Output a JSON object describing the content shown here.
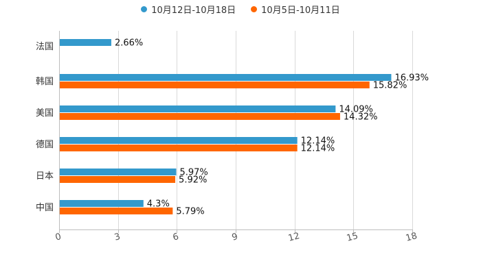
{
  "chart_data": {
    "type": "bar",
    "orientation": "horizontal",
    "categories": [
      "法国",
      "韩国",
      "美国",
      "德国",
      "日本",
      "中国"
    ],
    "series": [
      {
        "name": "10月12日-10月18日",
        "color": "#3399cc",
        "values": [
          2.66,
          16.93,
          14.09,
          12.14,
          5.97,
          4.3
        ],
        "labels": [
          "2.66%",
          "16.93%",
          "14.09%",
          "12.14%",
          "5.97%",
          "4.3%"
        ]
      },
      {
        "name": "10月5日-10月11日",
        "color": "#ff6600",
        "values": [
          null,
          15.82,
          14.32,
          12.14,
          5.92,
          5.79
        ],
        "labels": [
          "",
          "15.82%",
          "14.32%",
          "12.14%",
          "5.92%",
          "5.79%"
        ]
      }
    ],
    "xlim": [
      0,
      18
    ],
    "xticks": [
      "0",
      "3",
      "6",
      "9",
      "12",
      "15",
      "18"
    ],
    "xtick_values": [
      0,
      3,
      6,
      9,
      12,
      15,
      18
    ],
    "grid": true,
    "legend": "top-center"
  }
}
